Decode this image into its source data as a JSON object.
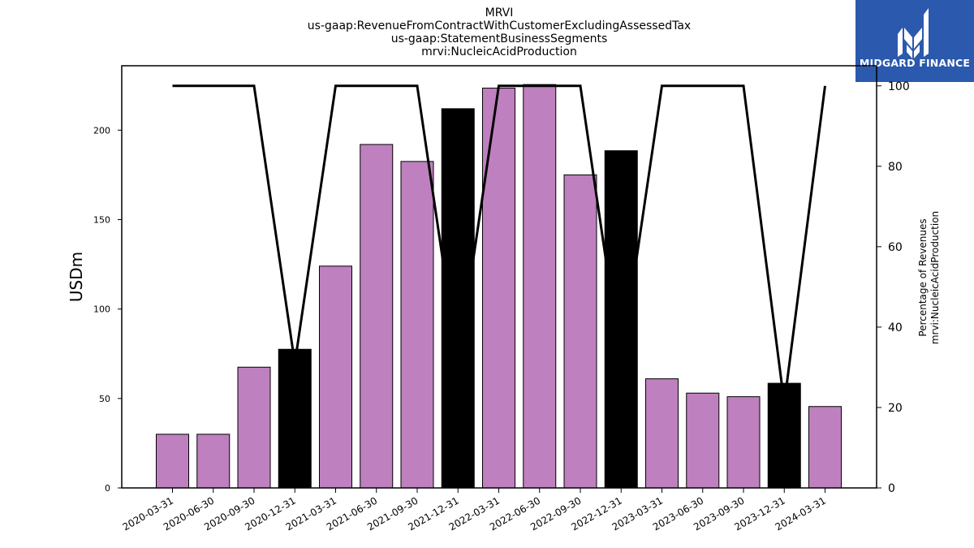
{
  "chart_data": {
    "type": "bar",
    "title_lines": [
      "MRVI",
      "us-gaap:RevenueFromContractWithCustomerExcludingAssessedTax",
      "us-gaap:StatementBusinessSegments",
      "mrvi:NucleicAcidProduction"
    ],
    "ylabel": "USDm",
    "ylabel_right_lines": [
      "Percentage of Revenues",
      "mrvi:NucleicAcidProduction"
    ],
    "ylim": [
      0,
      236
    ],
    "yticks": [
      0,
      50,
      100,
      150,
      200
    ],
    "ylim_right": [
      0,
      105
    ],
    "yticks_right": [
      0,
      20,
      40,
      60,
      80,
      100
    ],
    "categories": [
      "2020-03-31",
      "2020-06-30",
      "2020-09-30",
      "2020-12-31",
      "2021-03-31",
      "2021-06-30",
      "2021-09-30",
      "2021-12-31",
      "2022-03-31",
      "2022-06-30",
      "2022-09-30",
      "2022-12-31",
      "2023-03-31",
      "2023-06-30",
      "2023-09-30",
      "2023-12-31",
      "2024-03-31"
    ],
    "values": [
      30,
      30,
      67.5,
      77.5,
      124,
      192,
      182.5,
      212,
      223.5,
      225.5,
      175,
      188.5,
      61,
      53,
      51,
      58.5,
      45.5
    ],
    "bar_colors": [
      "#bf80bf",
      "#bf80bf",
      "#bf80bf",
      "#000000",
      "#bf80bf",
      "#bf80bf",
      "#bf80bf",
      "#000000",
      "#bf80bf",
      "#bf80bf",
      "#bf80bf",
      "#000000",
      "#bf80bf",
      "#bf80bf",
      "#bf80bf",
      "#000000",
      "#bf80bf"
    ],
    "series": [
      {
        "type": "line",
        "axis": "right",
        "values": [
          100,
          100,
          100,
          31,
          100,
          100,
          100,
          31,
          100,
          100,
          100,
          31,
          100,
          100,
          100,
          21,
          100
        ]
      }
    ],
    "grid": false
  },
  "logo": {
    "text": "MIDGARD FINANCE",
    "color": "#2b59ad"
  }
}
